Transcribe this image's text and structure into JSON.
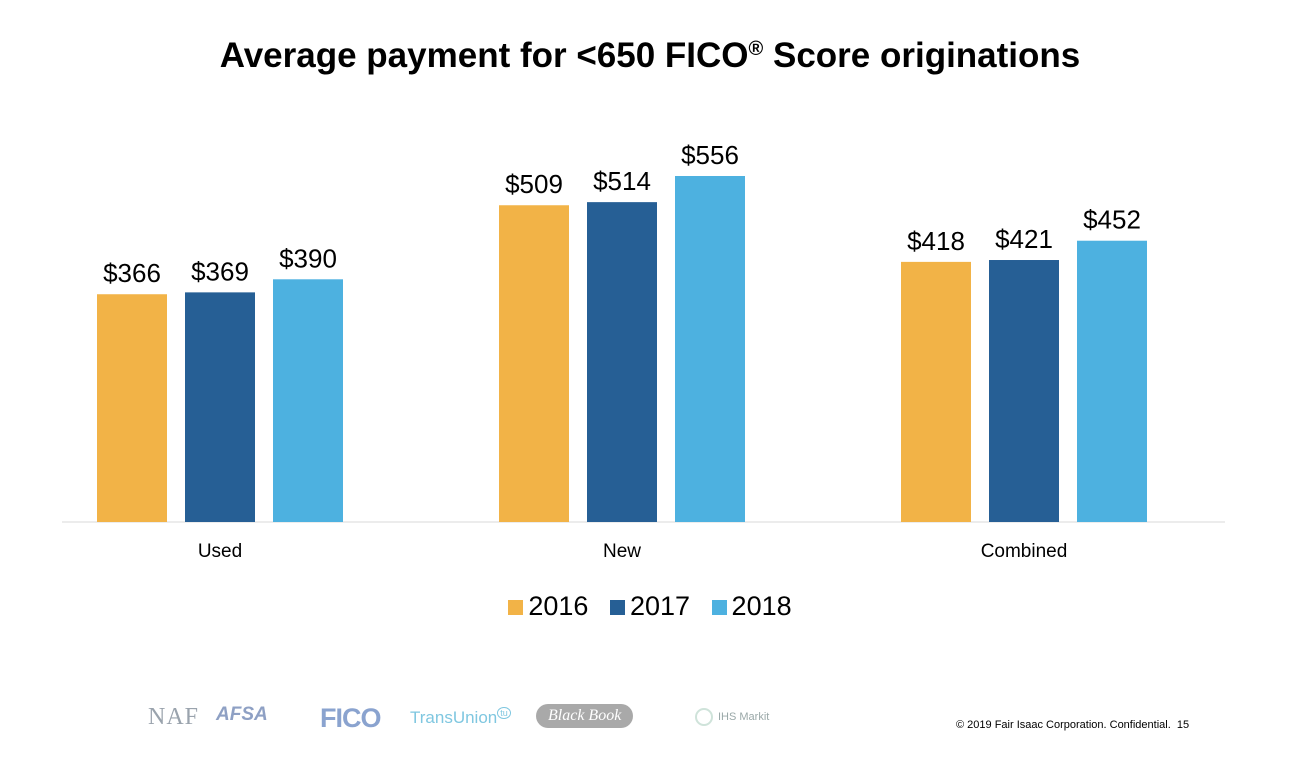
{
  "title": "Average payment for <650 FICO",
  "title_sup": "®",
  "title_tail": " Score originations",
  "chart_data": {
    "type": "bar",
    "categories": [
      "Used",
      "New",
      "Combined"
    ],
    "series": [
      {
        "name": "2016",
        "color": "#F2B347",
        "values": [
          366,
          509,
          418
        ]
      },
      {
        "name": "2017",
        "color": "#265F95",
        "values": [
          369,
          514,
          421
        ]
      },
      {
        "name": "2018",
        "color": "#4DB1E0",
        "values": [
          390,
          556,
          452
        ]
      }
    ],
    "data_labels": [
      [
        "$366",
        "$369",
        "$390"
      ],
      [
        "$509",
        "$514",
        "$556"
      ],
      [
        "$418",
        "$421",
        "$452"
      ]
    ],
    "ylim": [
      0,
      600
    ],
    "grid": false,
    "legend": "bottom"
  },
  "logos": {
    "naf": "NAF",
    "afsa": "AFSA",
    "fico": "FICO",
    "transunion": "TransUnion",
    "transunion_mark": "tu",
    "blackbook": "Black Book",
    "ihs": "IHS Markit"
  },
  "footer": "© 2019 Fair Isaac Corporation. Confidential.",
  "page_number": "15"
}
